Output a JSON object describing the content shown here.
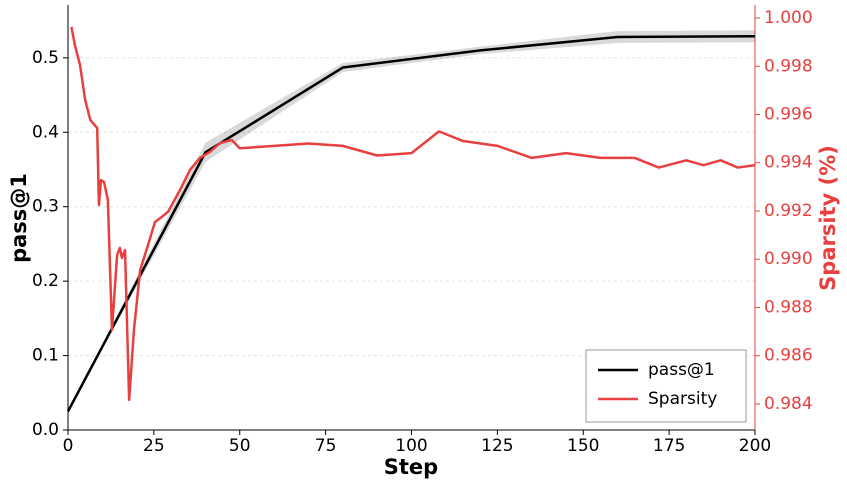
{
  "chart_data": {
    "type": "line",
    "x_label": "Step",
    "y_label": "pass@1",
    "y2_label": "Sparsity (%)",
    "xlim": [
      0,
      200
    ],
    "xticks": [
      0,
      25,
      50,
      75,
      100,
      125,
      150,
      175,
      200
    ],
    "ylim": [
      0,
      0.571
    ],
    "yticks": [
      {
        "value": 0,
        "label": "0.0"
      },
      0.1,
      0.2,
      0.3,
      0.4,
      0.5
    ],
    "y2lim": [
      0.98292,
      1.00054
    ],
    "y2ticks": [
      0.984,
      0.986,
      0.988,
      {
        "value": 0.99,
        "label": "0.990"
      },
      0.992,
      0.994,
      0.996,
      0.998,
      {
        "value": 1,
        "label": "1.000"
      }
    ],
    "grid": true,
    "legend": "lower right",
    "series": [
      {
        "name": "pass@1",
        "color": "#000000",
        "x": [
          0,
          40,
          80,
          120,
          160,
          200
        ],
        "values": [
          0.025,
          0.373,
          0.487,
          0.51,
          0.528,
          0.529
        ],
        "lower": [
          0.025,
          0.36,
          0.481,
          0.505,
          0.52,
          0.521
        ],
        "upper": [
          0.025,
          0.386,
          0.493,
          0.515,
          0.536,
          0.537
        ]
      },
      {
        "name": "Sparsity",
        "color": "#e8403f",
        "axis": "y2",
        "x": [
          1,
          2,
          3.5,
          5,
          6.5,
          8,
          8.5,
          9,
          9.6,
          10.5,
          11.6,
          12.8,
          14.3,
          15.1,
          15.7,
          16.6,
          17.8,
          19.2,
          21,
          23.3,
          25.3,
          26.8,
          29.1,
          32.6,
          35.5,
          38.4,
          41.3,
          44.3,
          47.7,
          50,
          60,
          70,
          80,
          90,
          100,
          108,
          115,
          125,
          135,
          145,
          155,
          165,
          172,
          180,
          185,
          190,
          195,
          200
        ],
        "values": [
          0.99963,
          0.99888,
          0.99805,
          0.9966,
          0.99577,
          0.99552,
          0.99544,
          0.99225,
          0.99328,
          0.9932,
          0.99246,
          0.98707,
          0.99018,
          0.99047,
          0.99005,
          0.99038,
          0.98417,
          0.98707,
          0.98955,
          0.99059,
          0.99154,
          0.9917,
          0.99196,
          0.99287,
          0.9937,
          0.9942,
          0.99445,
          0.99482,
          0.99494,
          0.9946,
          0.9947,
          0.9948,
          0.9947,
          0.9943,
          0.9944,
          0.9953,
          0.9949,
          0.9947,
          0.9942,
          0.9944,
          0.9942,
          0.9942,
          0.9938,
          0.9941,
          0.9939,
          0.9941,
          0.9938,
          0.9939
        ]
      }
    ]
  }
}
